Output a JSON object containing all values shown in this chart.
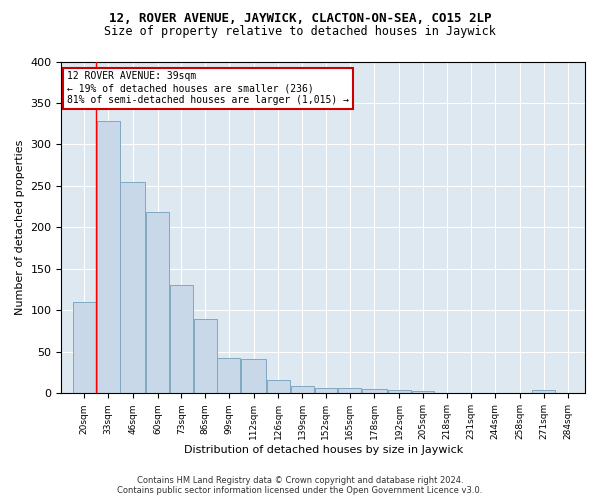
{
  "title1": "12, ROVER AVENUE, JAYWICK, CLACTON-ON-SEA, CO15 2LP",
  "title2": "Size of property relative to detached houses in Jaywick",
  "xlabel": "Distribution of detached houses by size in Jaywick",
  "ylabel": "Number of detached properties",
  "footer1": "Contains HM Land Registry data © Crown copyright and database right 2024.",
  "footer2": "Contains public sector information licensed under the Open Government Licence v3.0.",
  "bin_labels": [
    "20sqm",
    "33sqm",
    "46sqm",
    "60sqm",
    "73sqm",
    "86sqm",
    "99sqm",
    "112sqm",
    "126sqm",
    "139sqm",
    "152sqm",
    "165sqm",
    "178sqm",
    "192sqm",
    "205sqm",
    "218sqm",
    "231sqm",
    "244sqm",
    "258sqm",
    "271sqm",
    "284sqm"
  ],
  "heights": [
    110,
    328,
    255,
    218,
    130,
    90,
    43,
    42,
    16,
    9,
    6,
    6,
    5,
    4,
    3,
    0,
    0,
    0,
    0,
    4,
    0
  ],
  "bar_color": "#c8d8e8",
  "bar_edge_color": "#7fa8c0",
  "property_line_x": 1,
  "annotation_line1": "12 ROVER AVENUE: 39sqm",
  "annotation_line2": "← 19% of detached houses are smaller (236)",
  "annotation_line3": "81% of semi-detached houses are larger (1,015) →",
  "annotation_box_edge": "#cc0000",
  "ylim_max": 400,
  "background_color": "#dde8f0",
  "grid_color": "#ffffff",
  "title1_fontsize": 9,
  "title2_fontsize": 8.5
}
